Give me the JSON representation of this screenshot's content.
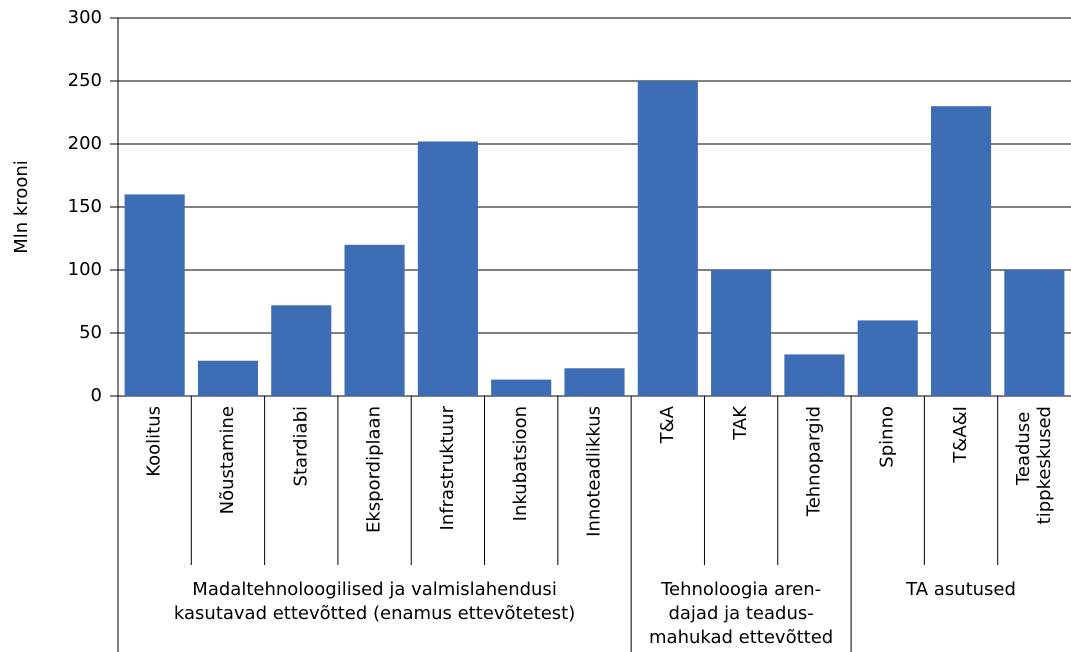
{
  "chart_data": {
    "type": "bar",
    "y_label": "Mln krooni",
    "groups": [
      {
        "lines": [
          "Madaltehnoloogilised ja valmislahendusi",
          "kasutavad ettevõtted (enamus ettevõtetest)"
        ],
        "categories": [
          "Koolitus",
          "Nõustamine",
          "Stardiabi",
          "Ekspordiplaan",
          "Infrastruktuur",
          "Inkubatsioon",
          "Innoteadlikkus"
        ]
      },
      {
        "lines": [
          "Tehnoloogia aren-",
          "dajad ja teadus-",
          "mahukad ettevõtted"
        ],
        "categories": [
          "T&A",
          "TAK",
          "Tehnopargid"
        ]
      },
      {
        "lines": [
          "TA asutused"
        ],
        "categories": [
          "Spinno",
          "T&A&I",
          "Teaduse tippkeskused"
        ]
      }
    ],
    "values": [
      160,
      28,
      72,
      120,
      202,
      13,
      22,
      250,
      100,
      33,
      60,
      230,
      100
    ],
    "color": "#3d6db5",
    "ylim": [
      0,
      300
    ],
    "yticks": [
      0,
      50,
      100,
      150,
      200,
      250,
      300
    ],
    "grid": true
  }
}
